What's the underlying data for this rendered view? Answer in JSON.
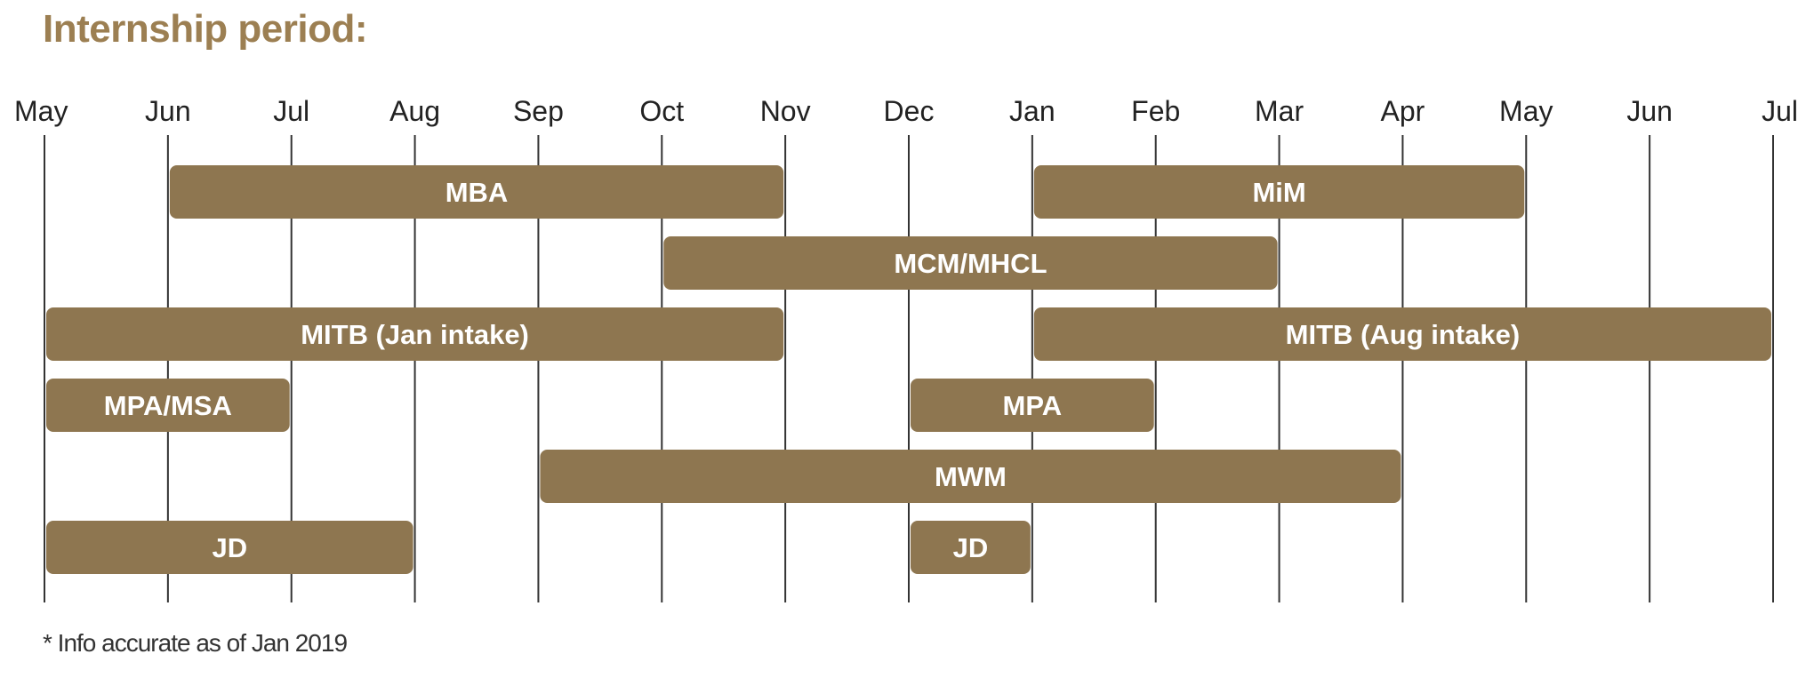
{
  "title": "Internship period:",
  "footnote": "* Info accurate as of Jan 2019",
  "colors": {
    "bar": "#8e7650",
    "bar_text": "#ffffff",
    "title": "#9c7f52",
    "gridline": "#333333",
    "tick_text": "#222222"
  },
  "chart_data": {
    "type": "bar",
    "orientation": "horizontal-timeline",
    "title": "Internship period:",
    "x_axis_ticks": [
      "May",
      "Jun",
      "Jul",
      "Aug",
      "Sep",
      "Oct",
      "Nov",
      "Dec",
      "Jan",
      "Feb",
      "Mar",
      "Apr",
      "May",
      "Jun",
      "Jul"
    ],
    "x_axis_position": "top",
    "grid": true,
    "bars": [
      {
        "label": "MBA",
        "row": 0,
        "start": "Jun",
        "end": "Nov",
        "start_index": 1,
        "end_index": 6
      },
      {
        "label": "MiM",
        "row": 0,
        "start": "Jan",
        "end": "May",
        "start_index": 8,
        "end_index": 12
      },
      {
        "label": "MCM/MHCL",
        "row": 1,
        "start": "Oct",
        "end": "Mar",
        "start_index": 5,
        "end_index": 10
      },
      {
        "label": "MITB (Jan intake)",
        "row": 2,
        "start": "May",
        "end": "Nov",
        "start_index": 0,
        "end_index": 6
      },
      {
        "label": "MITB (Aug intake)",
        "row": 2,
        "start": "Jan",
        "end": "Jul",
        "start_index": 8,
        "end_index": 14
      },
      {
        "label": "MPA/MSA",
        "row": 3,
        "start": "May",
        "end": "Jul",
        "start_index": 0,
        "end_index": 2
      },
      {
        "label": "MPA",
        "row": 3,
        "start": "Dec",
        "end": "Feb",
        "start_index": 7,
        "end_index": 9
      },
      {
        "label": "MWM",
        "row": 4,
        "start": "Sep",
        "end": "Apr",
        "start_index": 4,
        "end_index": 11
      },
      {
        "label": "JD",
        "row": 5,
        "start": "May",
        "end": "Aug",
        "start_index": 0,
        "end_index": 3
      },
      {
        "label": "JD",
        "row": 5,
        "start": "Dec",
        "end": "Jan",
        "start_index": 7,
        "end_index": 8
      }
    ]
  }
}
